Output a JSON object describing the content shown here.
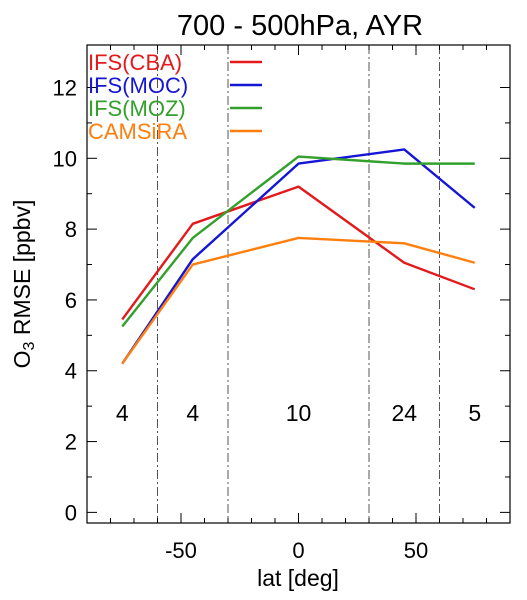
{
  "chart_data": {
    "type": "line",
    "title": "700 -  500hPa, AYR",
    "xlabel": "lat [deg]",
    "ylabel_main": "O",
    "ylabel_sub": "3",
    "ylabel_rest": " RMSE [ppbv]",
    "xlim": [
      -90,
      90
    ],
    "ylim": [
      -0.3,
      13.2
    ],
    "x": [
      -75,
      -45,
      0,
      45,
      75
    ],
    "xticks": [
      -50,
      0,
      50
    ],
    "xtick_labels": [
      "-50",
      "0",
      "50"
    ],
    "yticks": [
      0,
      2,
      4,
      6,
      8,
      10,
      12
    ],
    "ytick_labels": [
      "0",
      "2",
      "4",
      "6",
      "8",
      "10",
      "12"
    ],
    "region_boundaries": [
      -60,
      -30,
      30,
      60
    ],
    "region_counts": [
      {
        "x": -75,
        "label": "4"
      },
      {
        "x": -45,
        "label": "4"
      },
      {
        "x": 0,
        "label": "10"
      },
      {
        "x": 45,
        "label": "24"
      },
      {
        "x": 75,
        "label": "5"
      }
    ],
    "counts_y": 2.8,
    "grid": false,
    "legend_position": "top-left",
    "series": [
      {
        "name": "IFS(CBA)",
        "color": "#e31a1c",
        "values": [
          5.45,
          8.15,
          9.2,
          7.05,
          6.3
        ]
      },
      {
        "name": "IFS(MOC)",
        "color": "#1515d6",
        "values": [
          4.2,
          7.15,
          9.85,
          10.25,
          8.6
        ]
      },
      {
        "name": "IFS(MOZ)",
        "color": "#33a02c",
        "values": [
          5.25,
          7.75,
          10.05,
          9.85,
          9.85
        ]
      },
      {
        "name": "CAMSiRA",
        "color": "#ff7f0e",
        "values": [
          4.2,
          7.0,
          7.75,
          7.6,
          7.05
        ]
      }
    ]
  }
}
